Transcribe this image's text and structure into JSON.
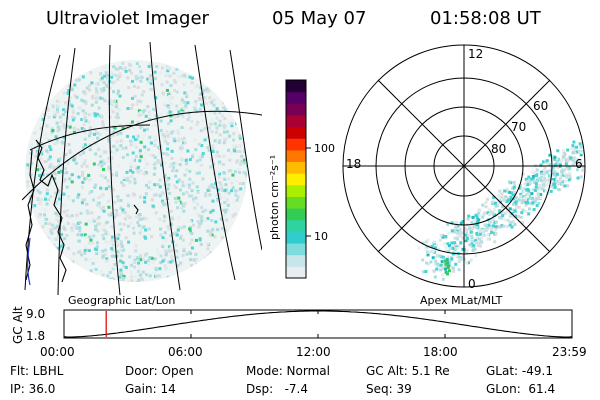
{
  "header": {
    "instrument": "Ultraviolet Imager",
    "date": "05 May 07",
    "time": "01:58:08 UT"
  },
  "colorbar": {
    "label": "photon cm⁻²s⁻¹",
    "ticks": [
      "100",
      "10"
    ],
    "colors": [
      "#e8eef0",
      "#c8e6ea",
      "#7fdcdc",
      "#33cccc",
      "#2fd3a0",
      "#33cc55",
      "#66dd22",
      "#aaee00",
      "#ffee00",
      "#ffbb00",
      "#ff7700",
      "#ff3300",
      "#cc0000",
      "#aa0033",
      "#770055",
      "#550066",
      "#220033"
    ]
  },
  "geo_view": {
    "label": "Geographic Lat/Lon"
  },
  "polar_view": {
    "label": "Apex MLat/MLT",
    "mlt_labels": {
      "top": "12",
      "left": "18",
      "right": "6",
      "bottom": "0"
    },
    "lat_labels": [
      "60",
      "70",
      "80"
    ]
  },
  "altitude_plot": {
    "ylabel": "GC Alt",
    "yticks": [
      "9.0",
      "1.8"
    ],
    "xticks": [
      "00:00",
      "06:00",
      "12:00",
      "18:00",
      "23:59"
    ],
    "current_time_fraction": 0.083
  },
  "status": {
    "flt": "Flt: LBHL",
    "ip": "IP: 36.0",
    "door": "Door: Open",
    "gain": "Gain: 14",
    "mode": "Mode: Normal",
    "dsp": "Dsp:   -7.4",
    "gc_alt": "GC Alt: 5.1 Re",
    "seq": "Seq: 39",
    "glat": "GLat: -49.1",
    "glon": "GLon:  61.4"
  }
}
